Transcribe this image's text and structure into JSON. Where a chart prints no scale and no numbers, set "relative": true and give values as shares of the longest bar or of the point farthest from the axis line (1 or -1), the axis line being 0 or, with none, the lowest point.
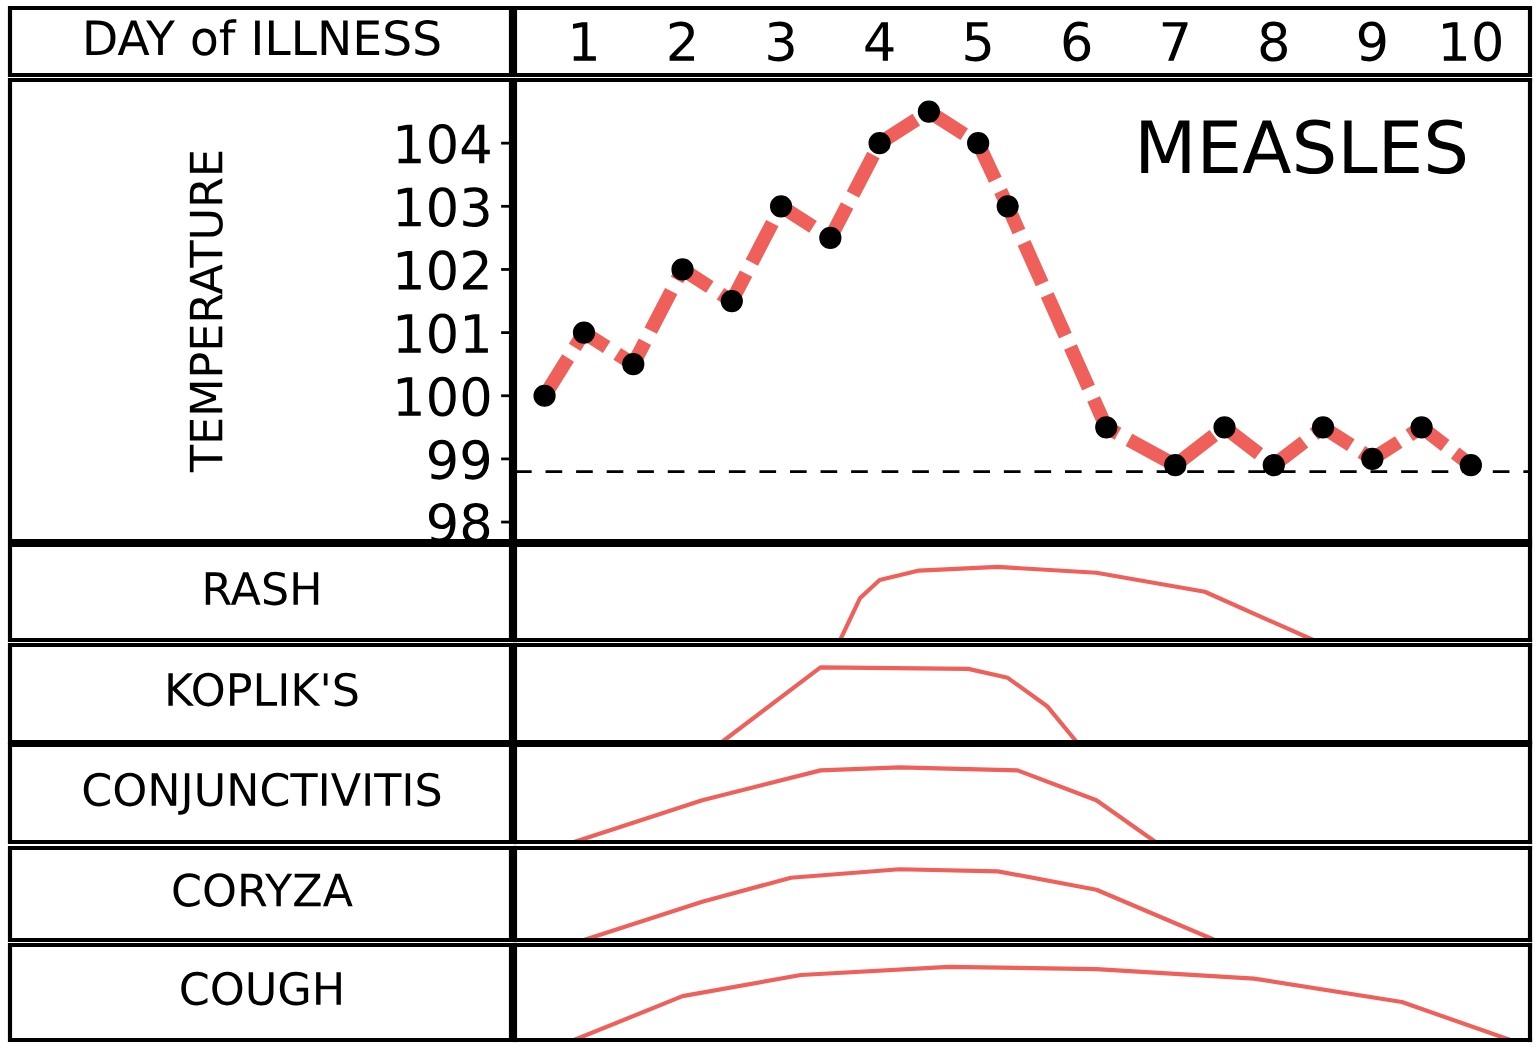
{
  "chart_data": [
    {
      "type": "line",
      "title": "MEASLES",
      "xlabel": "DAY of ILLNESS",
      "ylabel": "TEMPERATURE",
      "xlim": [
        0.3,
        10.6
      ],
      "xticks": [
        1,
        2,
        3,
        4,
        5,
        6,
        7,
        8,
        9,
        10
      ],
      "ylim": [
        97.7,
        105
      ],
      "yticks": [
        98,
        99,
        100,
        101,
        102,
        103,
        104
      ],
      "grid": false,
      "legend": false,
      "marker": "circle",
      "line_style": "dashed",
      "series": [
        {
          "color": "#f0605a",
          "x": [
            0.6,
            1.0,
            1.5,
            2.0,
            2.5,
            3.0,
            3.5,
            4.0,
            4.5,
            5.0,
            5.3,
            6.3,
            7.0,
            7.5,
            8.0,
            8.5,
            9.0,
            9.5,
            10.0
          ],
          "values": [
            100,
            101,
            100.5,
            102,
            101.5,
            103,
            102.5,
            104,
            104.5,
            104,
            103,
            99.5,
            98.9,
            99.5,
            98.9,
            99.5,
            99,
            99.5,
            98.9
          ]
        }
      ],
      "ref_lines": [
        {
          "axis": "y",
          "value": 98.8,
          "color": "#000000",
          "line_style": "dashed"
        }
      ]
    },
    {
      "type": "line",
      "ylabel": "RASH",
      "relative": true,
      "xlim": [
        0.3,
        10.6
      ],
      "series": [
        {
          "color": "#f0605a",
          "x": [
            3.6,
            3.8,
            4.0,
            4.4,
            5.2,
            6.2,
            7.3,
            8.4
          ],
          "values": [
            0,
            0.57,
            0.82,
            0.95,
            1,
            0.92,
            0.66,
            0
          ]
        }
      ]
    },
    {
      "type": "line",
      "ylabel": "KOPLIK'S",
      "relative": true,
      "xlim": [
        0.3,
        10.6
      ],
      "series": [
        {
          "color": "#f0605a",
          "x": [
            2.4,
            3.4,
            4.9,
            5.3,
            5.7,
            6.0
          ],
          "values": [
            0,
            1,
            0.98,
            0.86,
            0.48,
            0
          ]
        }
      ]
    },
    {
      "type": "line",
      "ylabel": "CONJUNCTIVITIS",
      "relative": true,
      "xlim": [
        0.3,
        10.6
      ],
      "series": [
        {
          "color": "#f0605a",
          "x": [
            0.9,
            2.2,
            3.4,
            4.2,
            5.4,
            6.2,
            6.8
          ],
          "values": [
            0,
            0.56,
            0.96,
            1,
            0.96,
            0.56,
            0
          ]
        }
      ]
    },
    {
      "type": "line",
      "ylabel": "CORYZA",
      "relative": true,
      "xlim": [
        0.3,
        10.6
      ],
      "series": [
        {
          "color": "#f0605a",
          "x": [
            1.0,
            2.2,
            3.1,
            4.2,
            5.2,
            6.2,
            7.4
          ],
          "values": [
            0,
            0.54,
            0.88,
            1,
            0.97,
            0.71,
            0
          ]
        }
      ]
    },
    {
      "type": "line",
      "ylabel": "COUGH",
      "relative": true,
      "xlim": [
        0.3,
        10.6
      ],
      "series": [
        {
          "color": "#f0605a",
          "x": [
            0.9,
            2.0,
            3.2,
            4.7,
            6.2,
            7.8,
            9.3,
            10.4
          ],
          "values": [
            0,
            0.6,
            0.89,
            1,
            0.97,
            0.84,
            0.52,
            0
          ]
        }
      ]
    }
  ]
}
